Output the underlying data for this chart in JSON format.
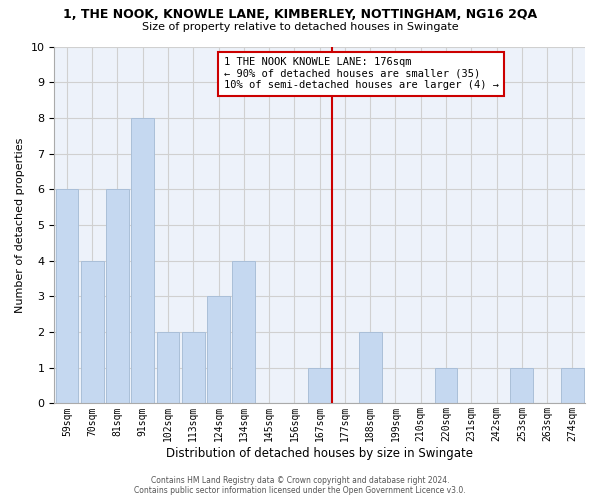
{
  "title": "1, THE NOOK, KNOWLE LANE, KIMBERLEY, NOTTINGHAM, NG16 2QA",
  "subtitle": "Size of property relative to detached houses in Swingate",
  "xlabel": "Distribution of detached houses by size in Swingate",
  "ylabel": "Number of detached properties",
  "bar_labels": [
    "59sqm",
    "70sqm",
    "81sqm",
    "91sqm",
    "102sqm",
    "113sqm",
    "124sqm",
    "134sqm",
    "145sqm",
    "156sqm",
    "167sqm",
    "177sqm",
    "188sqm",
    "199sqm",
    "210sqm",
    "220sqm",
    "231sqm",
    "242sqm",
    "253sqm",
    "263sqm",
    "274sqm"
  ],
  "bar_values": [
    6,
    4,
    6,
    8,
    2,
    2,
    3,
    4,
    0,
    0,
    1,
    0,
    2,
    0,
    0,
    1,
    0,
    0,
    1,
    0,
    1
  ],
  "bar_color": "#c5d8f0",
  "bar_edge_color": "#aabfd8",
  "vline_color": "#cc0000",
  "ylim": [
    0,
    10
  ],
  "yticks": [
    0,
    1,
    2,
    3,
    4,
    5,
    6,
    7,
    8,
    9,
    10
  ],
  "annotation_text": "1 THE NOOK KNOWLE LANE: 176sqm\n← 90% of detached houses are smaller (35)\n10% of semi-detached houses are larger (4) →",
  "annotation_box_edge": "#cc0000",
  "grid_color": "#d0d0d0",
  "background_color": "#edf2fa",
  "footer_line1": "Contains HM Land Registry data © Crown copyright and database right 2024.",
  "footer_line2": "Contains public sector information licensed under the Open Government Licence v3.0."
}
